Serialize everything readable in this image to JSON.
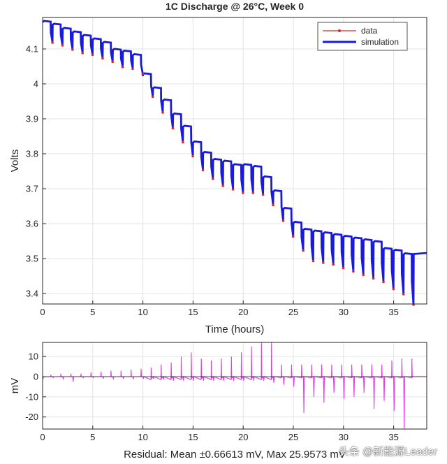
{
  "chart_data": [
    {
      "type": "line",
      "title": "1C Discharge @ 26°C, Week 0",
      "xlabel": "Time (hours)",
      "ylabel": "Volts",
      "xlim": [
        0,
        38.3
      ],
      "ylim": [
        3.37,
        4.19
      ],
      "xticks": [
        "0",
        "5",
        "10",
        "15",
        "20",
        "25",
        "30",
        "35"
      ],
      "xtick_values": [
        0,
        5,
        10,
        15,
        20,
        25,
        30,
        35
      ],
      "yticks": [
        "3.4",
        "3.5",
        "3.6",
        "3.7",
        "3.8",
        "3.9",
        "4",
        "4.1"
      ],
      "ytick_values": [
        3.4,
        3.5,
        3.6,
        3.7,
        3.8,
        3.9,
        4.0,
        4.1
      ],
      "legend": {
        "position": "top-right",
        "entries": [
          "data",
          "simulation"
        ]
      },
      "series": [
        {
          "name": "data",
          "color": "#e8231f"
        },
        {
          "name": "simulation",
          "color": "#1a1adb"
        }
      ],
      "pulse_period_hours": 1.0,
      "rest_open_circuit_volts": [
        4.18,
        4.172,
        4.16,
        4.15,
        4.14,
        4.13,
        4.12,
        4.1,
        4.095,
        4.085,
        4.03,
        3.99,
        3.955,
        3.915,
        3.88,
        3.835,
        3.805,
        3.785,
        3.78,
        3.77,
        3.77,
        3.765,
        3.735,
        3.695,
        3.645,
        3.605,
        3.585,
        3.58,
        3.575,
        3.57,
        3.565,
        3.56,
        3.555,
        3.55,
        3.53,
        3.525,
        3.515
      ],
      "pulse_end_volts": [
        4.12,
        4.112,
        4.1,
        4.09,
        4.085,
        4.075,
        4.065,
        4.05,
        4.045,
        4.03,
        3.965,
        3.92,
        3.875,
        3.835,
        3.795,
        3.755,
        3.73,
        3.71,
        3.7,
        3.69,
        3.69,
        3.685,
        3.655,
        3.61,
        3.565,
        3.525,
        3.495,
        3.49,
        3.485,
        3.475,
        3.465,
        3.455,
        3.445,
        3.435,
        3.415,
        3.4,
        3.37
      ]
    },
    {
      "type": "line",
      "title": "",
      "xlabel": "Residual: Mean ±0.66613 mV, Max 25.9573 mV",
      "ylabel": "mV",
      "xlim": [
        0,
        38.3
      ],
      "ylim": [
        -26,
        17
      ],
      "xticks": [
        "0",
        "5",
        "10",
        "15",
        "20",
        "25",
        "30",
        "35"
      ],
      "xtick_values": [
        0,
        5,
        10,
        15,
        20,
        25,
        30,
        35
      ],
      "yticks": [
        "10",
        "0",
        "-10",
        "-20"
      ],
      "ytick_values": [
        10,
        0,
        -10,
        -20
      ],
      "series": [
        {
          "name": "residual",
          "color": "#e13be6"
        }
      ],
      "pulse_spikes_mV": [
        1,
        1.5,
        1.5,
        1.5,
        2,
        2.5,
        3,
        3,
        3.5,
        4,
        4.5,
        6,
        7,
        10,
        12,
        9,
        8,
        9,
        10,
        12,
        15,
        17,
        17,
        6,
        6,
        6,
        6,
        6,
        6,
        6,
        6,
        6,
        6,
        6,
        8,
        9,
        9
      ],
      "recovery_spikes_mV": [
        -1,
        -0.5,
        -1,
        -2.5,
        -0.5,
        -0.5,
        -1,
        -1,
        -1,
        -1,
        -1,
        -1,
        -1.5,
        -2,
        -2,
        -2,
        -2,
        -2,
        -2,
        -2,
        -2,
        -2,
        -2,
        -3,
        -4,
        -5,
        -18,
        -10,
        -13,
        -8,
        -11,
        -10,
        -8,
        -16,
        -12,
        -17,
        -26
      ]
    }
  ],
  "watermark": "头条 @新能源Leader"
}
